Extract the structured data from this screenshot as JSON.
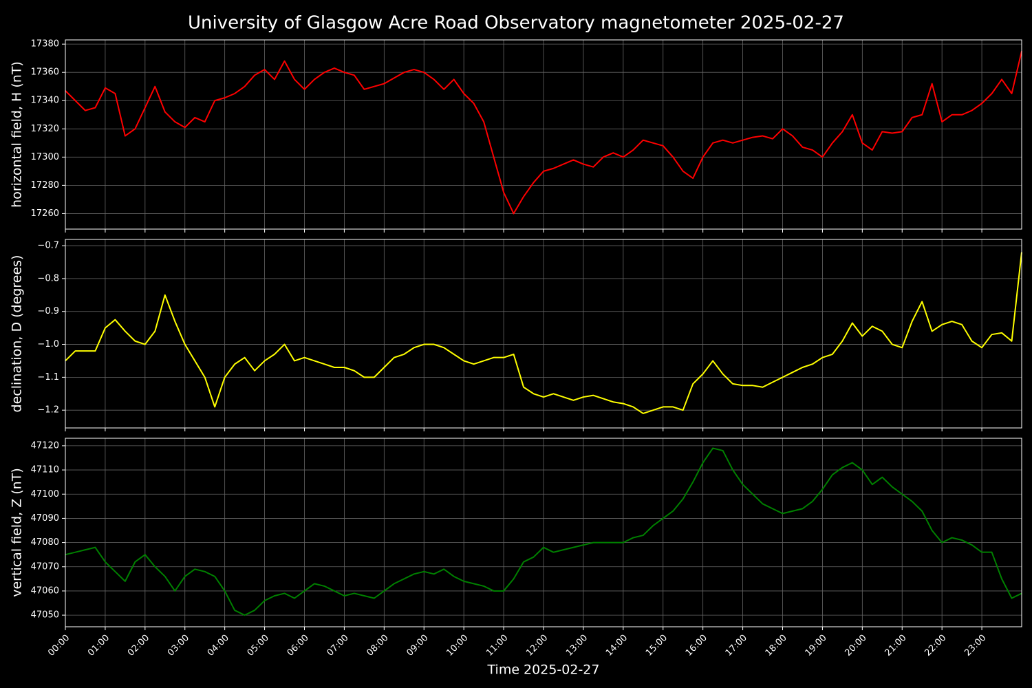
{
  "title": "University of Glasgow Acre Road Observatory magnetometer 2025-02-27",
  "xlabel": "Time 2025-02-27",
  "xlim": [
    0,
    24
  ],
  "xticks": [
    {
      "value": 0,
      "label": "00:00"
    },
    {
      "value": 1,
      "label": "01:00"
    },
    {
      "value": 2,
      "label": "02:00"
    },
    {
      "value": 3,
      "label": "03:00"
    },
    {
      "value": 4,
      "label": "04:00"
    },
    {
      "value": 5,
      "label": "05:00"
    },
    {
      "value": 6,
      "label": "06:00"
    },
    {
      "value": 7,
      "label": "07:00"
    },
    {
      "value": 8,
      "label": "08:00"
    },
    {
      "value": 9,
      "label": "09:00"
    },
    {
      "value": 10,
      "label": "10:00"
    },
    {
      "value": 11,
      "label": "11:00"
    },
    {
      "value": 12,
      "label": "12:00"
    },
    {
      "value": 13,
      "label": "13:00"
    },
    {
      "value": 14,
      "label": "14:00"
    },
    {
      "value": 15,
      "label": "15:00"
    },
    {
      "value": 16,
      "label": "16:00"
    },
    {
      "value": 17,
      "label": "17:00"
    },
    {
      "value": 18,
      "label": "18:00"
    },
    {
      "value": 19,
      "label": "19:00"
    },
    {
      "value": 20,
      "label": "20:00"
    },
    {
      "value": 21,
      "label": "21:00"
    },
    {
      "value": 22,
      "label": "22:00"
    },
    {
      "value": 23,
      "label": "23:00"
    }
  ],
  "x": [
    0,
    0.25,
    0.5,
    0.75,
    1,
    1.25,
    1.5,
    1.75,
    2,
    2.25,
    2.5,
    2.75,
    3,
    3.25,
    3.5,
    3.75,
    4,
    4.25,
    4.5,
    4.75,
    5,
    5.25,
    5.5,
    5.75,
    6,
    6.25,
    6.5,
    6.75,
    7,
    7.25,
    7.5,
    7.75,
    8,
    8.25,
    8.5,
    8.75,
    9,
    9.25,
    9.5,
    9.75,
    10,
    10.25,
    10.5,
    10.75,
    11,
    11.25,
    11.5,
    11.75,
    12,
    12.25,
    12.5,
    12.75,
    13,
    13.25,
    13.5,
    13.75,
    14,
    14.25,
    14.5,
    14.75,
    15,
    15.25,
    15.5,
    15.75,
    16,
    16.25,
    16.5,
    16.75,
    17,
    17.25,
    17.5,
    17.75,
    18,
    18.25,
    18.5,
    18.75,
    19,
    19.25,
    19.5,
    19.75,
    20,
    20.25,
    20.5,
    20.75,
    21,
    21.25,
    21.5,
    21.75,
    22,
    22.25,
    22.5,
    22.75,
    23,
    23.25,
    23.5,
    23.75,
    24
  ],
  "chart_data": [
    {
      "type": "line",
      "ylabel": "horizontal field, H (nT)",
      "color": "#ff0000",
      "grid": true,
      "ylim": [
        17249,
        17383
      ],
      "yticks": [
        17260,
        17280,
        17300,
        17320,
        17340,
        17360,
        17380
      ],
      "values": [
        17347,
        17340,
        17333,
        17335,
        17349,
        17345,
        17315,
        17320,
        17335,
        17350,
        17332,
        17325,
        17321,
        17328,
        17325,
        17340,
        17342,
        17345,
        17350,
        17358,
        17362,
        17355,
        17368,
        17355,
        17348,
        17355,
        17360,
        17363,
        17360,
        17358,
        17348,
        17350,
        17352,
        17356,
        17360,
        17362,
        17360,
        17355,
        17348,
        17355,
        17345,
        17338,
        17325,
        17300,
        17275,
        17260,
        17272,
        17282,
        17290,
        17292,
        17295,
        17298,
        17295,
        17293,
        17300,
        17303,
        17300,
        17305,
        17312,
        17310,
        17308,
        17300,
        17290,
        17285,
        17300,
        17310,
        17312,
        17310,
        17312,
        17314,
        17315,
        17313,
        17320,
        17315,
        17307,
        17305,
        17300,
        17310,
        17318,
        17330,
        17310,
        17305,
        17318,
        17317,
        17318,
        17328,
        17330,
        17352,
        17325,
        17330,
        17330,
        17333,
        17338,
        17345,
        17355,
        17345,
        17375
      ]
    },
    {
      "type": "line",
      "ylabel": "declination, D (degrees)",
      "color": "#ffff00",
      "grid": true,
      "ylim": [
        -1.254,
        -0.681
      ],
      "yticks": [
        {
          "value": -1.2,
          "label": "−1.2"
        },
        {
          "value": -1.1,
          "label": "−1.1"
        },
        {
          "value": -1.0,
          "label": "−1.0"
        },
        {
          "value": -0.9,
          "label": "−0.9"
        },
        {
          "value": -0.8,
          "label": "−0.8"
        },
        {
          "value": -0.7,
          "label": "−0.7"
        }
      ],
      "values": [
        -1.05,
        -1.02,
        -1.02,
        -1.02,
        -0.95,
        -0.925,
        -0.96,
        -0.99,
        -1.0,
        -0.96,
        -0.85,
        -0.93,
        -1.0,
        -1.05,
        -1.1,
        -1.19,
        -1.1,
        -1.06,
        -1.04,
        -1.08,
        -1.05,
        -1.03,
        -1.0,
        -1.05,
        -1.04,
        -1.05,
        -1.06,
        -1.07,
        -1.07,
        -1.08,
        -1.1,
        -1.1,
        -1.07,
        -1.04,
        -1.03,
        -1.01,
        -1.0,
        -1.0,
        -1.01,
        -1.03,
        -1.05,
        -1.06,
        -1.05,
        -1.04,
        -1.04,
        -1.03,
        -1.13,
        -1.15,
        -1.16,
        -1.15,
        -1.16,
        -1.17,
        -1.16,
        -1.155,
        -1.165,
        -1.175,
        -1.18,
        -1.19,
        -1.21,
        -1.2,
        -1.19,
        -1.19,
        -1.2,
        -1.12,
        -1.09,
        -1.05,
        -1.09,
        -1.12,
        -1.125,
        -1.125,
        -1.13,
        -1.115,
        -1.1,
        -1.085,
        -1.07,
        -1.06,
        -1.04,
        -1.03,
        -0.99,
        -0.935,
        -0.975,
        -0.945,
        -0.96,
        -1.0,
        -1.01,
        -0.93,
        -0.87,
        -0.96,
        -0.94,
        -0.93,
        -0.94,
        -0.99,
        -1.01,
        -0.97,
        -0.965,
        -0.99,
        -0.72
      ]
    },
    {
      "type": "line",
      "ylabel": "vertical field, Z (nT)",
      "color": "#008000",
      "grid": true,
      "ylim": [
        47045.2,
        47123.1
      ],
      "yticks": [
        47050,
        47060,
        47070,
        47080,
        47090,
        47100,
        47110,
        47120
      ],
      "values": [
        47075,
        47076,
        47077,
        47078,
        47072,
        47068,
        47064,
        47072,
        47075,
        47070,
        47066,
        47060,
        47066,
        47069,
        47068,
        47066,
        47060,
        47052,
        47050,
        47052,
        47056,
        47058,
        47059,
        47057,
        47060,
        47063,
        47062,
        47060,
        47058,
        47059,
        47058,
        47057,
        47060,
        47063,
        47065,
        47067,
        47068,
        47067,
        47069,
        47066,
        47064,
        47063,
        47062,
        47060,
        47060,
        47065,
        47072,
        47074,
        47078,
        47076,
        47077,
        47078,
        47079,
        47080,
        47080,
        47080,
        47080,
        47082,
        47083,
        47087,
        47090,
        47093,
        47098,
        47105,
        47113,
        47119,
        47118,
        47110,
        47104,
        47100,
        47096,
        47094,
        47092,
        47093,
        47094,
        47097,
        47102,
        47108,
        47111,
        47113,
        47110,
        47104,
        47107,
        47103,
        47100,
        47097,
        47093,
        47085,
        47080,
        47082,
        47081,
        47079,
        47076,
        47076,
        47065,
        47057,
        47059
      ]
    }
  ]
}
